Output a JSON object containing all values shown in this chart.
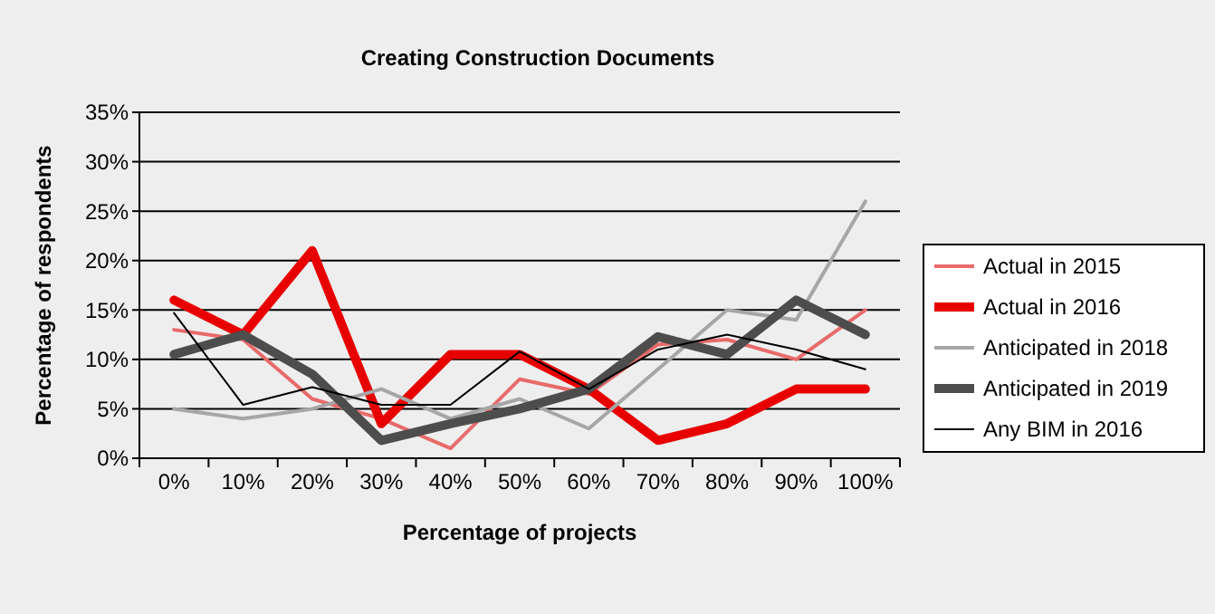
{
  "chart_data": {
    "type": "line",
    "title": "Creating Construction Documents",
    "xlabel": "Percentage of projects",
    "ylabel": "Percentage of respondents",
    "categories": [
      "0%",
      "10%",
      "20%",
      "30%",
      "40%",
      "50%",
      "60%",
      "70%",
      "80%",
      "90%",
      "100%"
    ],
    "ylim": [
      0,
      35
    ],
    "yticks": [
      {
        "value": 0,
        "label": "0%"
      },
      {
        "value": 5,
        "label": "5%"
      },
      {
        "value": 10,
        "label": "10%"
      },
      {
        "value": 15,
        "label": "15%"
      },
      {
        "value": 20,
        "label": "20%"
      },
      {
        "value": 25,
        "label": "25%"
      },
      {
        "value": 30,
        "label": "30%"
      },
      {
        "value": 35,
        "label": "35%"
      }
    ],
    "grid": "y",
    "legend": "right",
    "series": [
      {
        "name": "Actual in 2015",
        "color": "#e86a6a",
        "values": [
          13,
          12,
          6,
          4,
          1,
          8,
          6.5,
          11.5,
          12,
          10,
          15
        ]
      },
      {
        "name": "Actual in 2016",
        "color": "#e80000",
        "values": [
          16,
          12.5,
          21,
          3.5,
          10.5,
          10.5,
          7,
          1.8,
          3.5,
          7,
          7
        ]
      },
      {
        "name": "Anticipated in 2018",
        "color": "#a6a6a6",
        "values": [
          5,
          4,
          5,
          7,
          4,
          6,
          3,
          9,
          15,
          14,
          26
        ]
      },
      {
        "name": "Anticipated in 2019",
        "color": "#4d4d4d",
        "values": [
          10.5,
          12.5,
          8.5,
          1.8,
          3.5,
          5,
          7,
          12.3,
          10.5,
          16,
          12.5
        ]
      },
      {
        "name": "Any BIM in 2016",
        "color": "#000000",
        "values": [
          14.7,
          5.4,
          7.2,
          5.4,
          5.4,
          10.8,
          7,
          11,
          12.5,
          11,
          9
        ]
      }
    ]
  }
}
